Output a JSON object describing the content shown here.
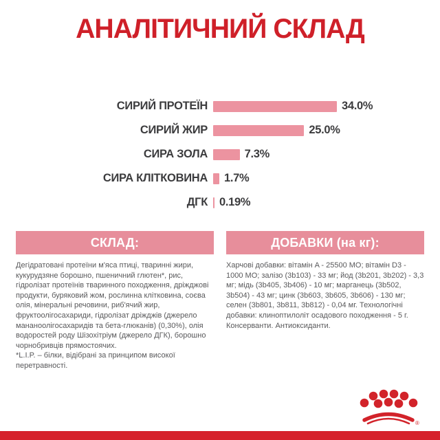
{
  "title": "АНАЛІТИЧНИЙ СКЛАД",
  "chart_data": {
    "type": "bar",
    "orientation": "horizontal",
    "title": "АНАЛІТИЧНИЙ СКЛАД",
    "categories": [
      "СИРИЙ ПРОТЕЇН",
      "СИРИЙ ЖИР",
      "СИРА ЗОЛА",
      "СИРА КЛІТКОВИНА",
      "ДГК"
    ],
    "values": [
      34.0,
      25.0,
      7.3,
      1.7,
      0.19
    ],
    "value_labels": [
      "34.0%",
      "25.0%",
      "7.3%",
      "1.7%",
      "0.19%"
    ],
    "unit": "%",
    "xlim": [
      0,
      38
    ],
    "grid": "off",
    "legend": "none",
    "bar_color": "#ec93a0"
  },
  "sections": {
    "composition": {
      "header": "СКЛАД:",
      "body": "Дегідратовані протеїни м'яса птиці, тваринні жири, кукурудзяне борошно, пшеничний глютен*, рис, гідролізат протеїнів тваринного походження, дріжджові продукти, буряковий жом, рослинна клітковина, соєва олія, мінеральні речовини, риб'ячий жир, фруктоолігосахариди, гідролізат дріжджів (джерело мананоолігосахаридів та бета-глюканів) (0,30%), олія водоростей роду Шізохітріум (джерело ДГК), борошно чорнобривців прямостоячих.",
      "footnote": "*L.I.P. – білки, відібрані за принципом високої перетравності."
    },
    "additives": {
      "header": "ДОБАВКИ (на кг):",
      "body": "Харчові добавки: вітамін A - 25500 МО; вітамін D3 - 1000 МО; залізо (3b103) - 33 мг; йод (3b201, 3b202) - 3,3 мг; мідь (3b405, 3b406) - 10 мг; марганець (3b502, 3b504) - 43 мг; цинк (3b603, 3b605, 3b606) - 130 мг; селен (3b801, 3b811, 3b812) - 0,04 мг. Технологічні добавки: клиноптилоліт осадового походження - 5 г. Консерванти. Антиоксиданти."
    }
  },
  "logo": {
    "name": "royal-canin-crown",
    "registered_mark": "®",
    "color": "#d2232a"
  },
  "colors": {
    "title_red": "#cf2029",
    "bar_pink": "#ec93a0",
    "header_pink": "#e78e9b",
    "body_text_gray": "#58585a",
    "label_dark": "#3c3c3e",
    "bottom_band_red": "#d6212b"
  }
}
